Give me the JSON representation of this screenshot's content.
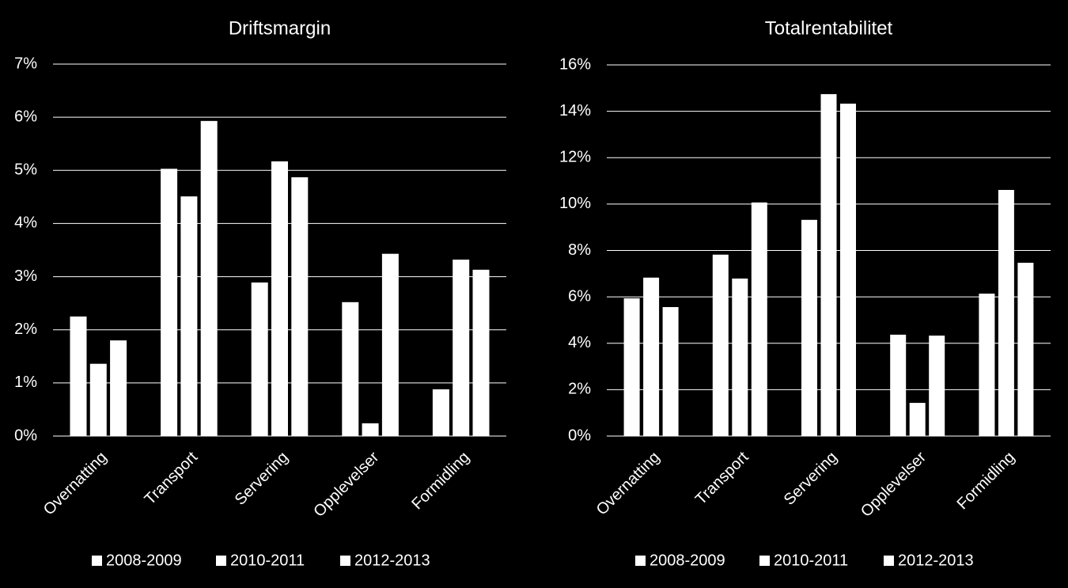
{
  "chart_data": [
    {
      "type": "bar",
      "title": "Driftsmargin",
      "categories": [
        "Overnatting",
        "Transport",
        "Servering",
        "Opplevelser",
        "Formidling"
      ],
      "series": [
        {
          "name": "2008-2009",
          "color": "#ffffff",
          "values": [
            2.25,
            5.03,
            2.89,
            2.52,
            0.88
          ]
        },
        {
          "name": "2010-2011",
          "color": "#ffffff",
          "values": [
            1.36,
            4.51,
            5.17,
            0.24,
            3.32
          ]
        },
        {
          "name": "2012-2013",
          "color": "#ffffff",
          "values": [
            1.8,
            5.93,
            4.87,
            3.43,
            3.13
          ]
        }
      ],
      "ylim": [
        0,
        7
      ],
      "yticks": [
        {
          "value": 0,
          "label": "0%"
        },
        {
          "value": 1,
          "label": "1%"
        },
        {
          "value": 2,
          "label": "2%"
        },
        {
          "value": 3,
          "label": "3%"
        },
        {
          "value": 4,
          "label": "4%"
        },
        {
          "value": 5,
          "label": "5%"
        },
        {
          "value": 6,
          "label": "6%"
        },
        {
          "value": 7,
          "label": "7%"
        }
      ],
      "grid": true,
      "legend": "bottom"
    },
    {
      "type": "bar",
      "title": "Totalrentabilitet",
      "categories": [
        "Overnatting",
        "Transport",
        "Servering",
        "Opplevelser",
        "Formidling"
      ],
      "series": [
        {
          "name": "2008-2009",
          "color": "#ffffff",
          "values": [
            5.94,
            7.82,
            9.32,
            4.37,
            6.14
          ]
        },
        {
          "name": "2010-2011",
          "color": "#ffffff",
          "values": [
            6.83,
            6.79,
            14.74,
            1.43,
            10.61
          ]
        },
        {
          "name": "2012-2013",
          "color": "#ffffff",
          "values": [
            5.56,
            10.07,
            14.33,
            4.33,
            7.47
          ]
        }
      ],
      "ylim": [
        0,
        16
      ],
      "yticks": [
        {
          "value": 0,
          "label": "0%"
        },
        {
          "value": 2,
          "label": "2%"
        },
        {
          "value": 4,
          "label": "4%"
        },
        {
          "value": 6,
          "label": "6%"
        },
        {
          "value": 8,
          "label": "8%"
        },
        {
          "value": 10,
          "label": "10%"
        },
        {
          "value": 12,
          "label": "12%"
        },
        {
          "value": 14,
          "label": "14%"
        },
        {
          "value": 16,
          "label": "16%"
        }
      ],
      "grid": true,
      "legend": "bottom"
    }
  ]
}
